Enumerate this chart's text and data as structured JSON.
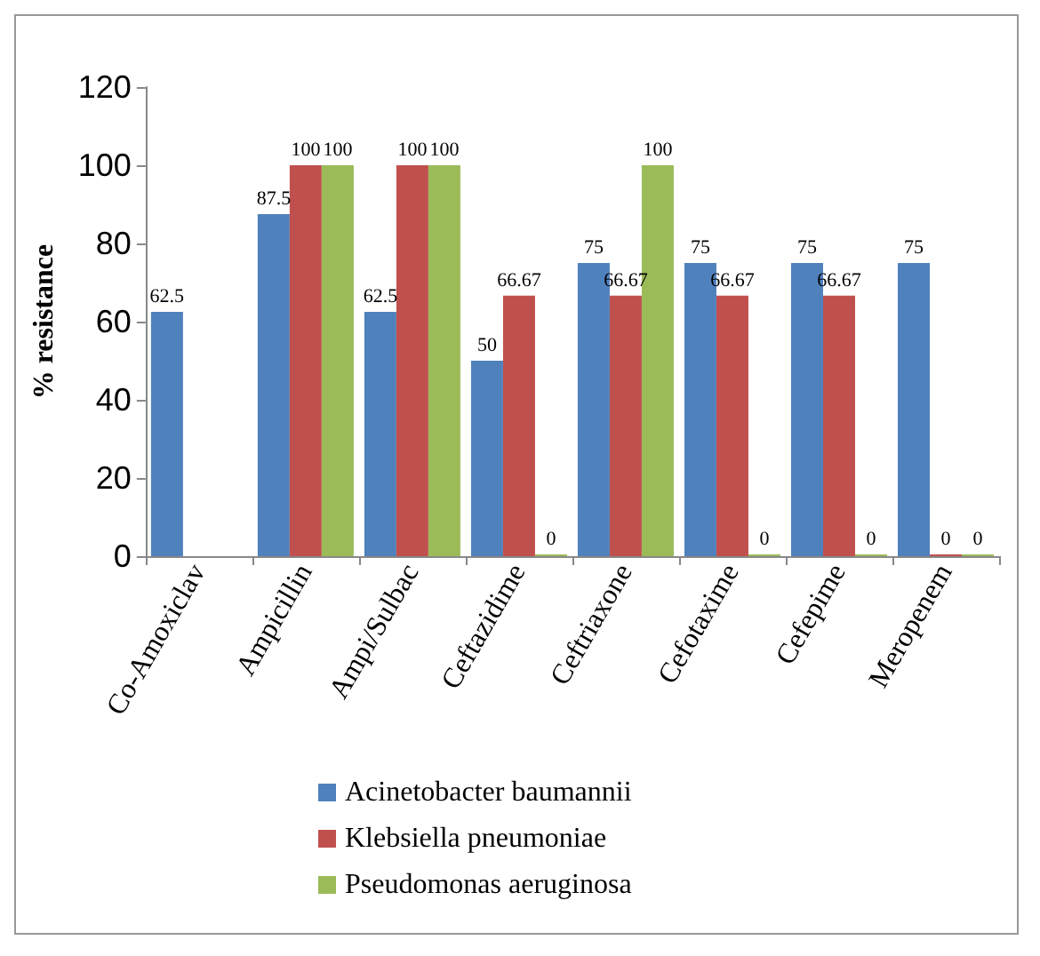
{
  "chart_data": {
    "type": "bar",
    "ylabel": "% resistance",
    "categories": [
      "Co-Amoxiclav",
      "Ampicillin",
      "Ampi/Sulbac",
      "Ceftazidime",
      "Ceftriaxone",
      "Cefotaxime",
      "Cefepime",
      "Meropenem"
    ],
    "series": [
      {
        "name": "Acinetobacter baumannii",
        "color": "#4f81bd",
        "values": [
          62.5,
          87.5,
          62.5,
          50,
          75,
          75,
          75,
          75
        ]
      },
      {
        "name": "Klebsiella pneumoniae",
        "color": "#c0504d",
        "values": [
          null,
          100,
          100,
          66.67,
          66.67,
          66.67,
          66.67,
          0
        ]
      },
      {
        "name": "Pseudomonas aeruginosa",
        "color": "#9bbb59",
        "values": [
          null,
          100,
          100,
          0,
          100,
          0,
          0,
          0
        ]
      }
    ],
    "ylim": [
      0,
      120
    ],
    "yticks": [
      0,
      20,
      40,
      60,
      80,
      100,
      120
    ],
    "grid": false,
    "legend": "bottom",
    "data_labels": true
  }
}
